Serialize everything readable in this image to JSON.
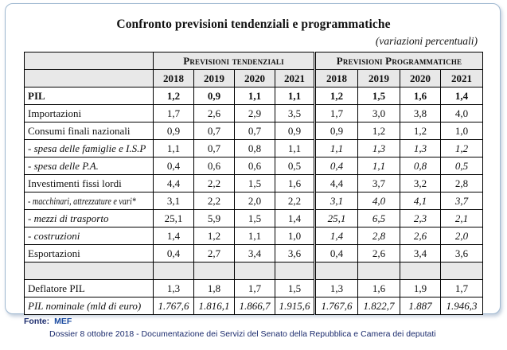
{
  "title": "Confronto previsioni tendenziali e programmatiche",
  "subtitle": "(variazioni percentuali)",
  "groups": {
    "tendenziali": "Previsioni tendenziali",
    "programmatiche": "Previsioni Programmatiche"
  },
  "years": [
    "2018",
    "2019",
    "2020",
    "2021",
    "2018",
    "2019",
    "2020",
    "2021"
  ],
  "rows": [
    {
      "label": "PIL",
      "values": [
        "1,2",
        "0,9",
        "1,1",
        "1,1",
        "1,2",
        "1,5",
        "1,6",
        "1,4"
      ]
    },
    {
      "label": "Importazioni",
      "values": [
        "1,7",
        "2,6",
        "2,9",
        "3,5",
        "1,7",
        "3,0",
        "3,8",
        "4,0"
      ]
    },
    {
      "label": "Consumi finali nazionali",
      "values": [
        "0,9",
        "0,7",
        "0,7",
        "0,9",
        "0,9",
        "1,2",
        "1,2",
        "1,0"
      ]
    },
    {
      "label": "- spesa delle famiglie e I.S.P",
      "values": [
        "1,1",
        "0,7",
        "0,8",
        "1,1",
        "1,1",
        "1,3",
        "1,3",
        "1,2"
      ]
    },
    {
      "label": "- spesa delle P.A.",
      "values": [
        "0,4",
        "0,6",
        "0,6",
        "0,5",
        "0,4",
        "1,1",
        "0,8",
        "0,5"
      ]
    },
    {
      "label": "Investimenti fissi lordi",
      "values": [
        "4,4",
        "2,2",
        "1,5",
        "1,6",
        "4,4",
        "3,7",
        "3,2",
        "2,8"
      ]
    },
    {
      "label": "- macchinari, attrezzature e vari*",
      "values": [
        "3,1",
        "2,2",
        "2,0",
        "2,2",
        "3,1",
        "4,0",
        "4,1",
        "3,7"
      ]
    },
    {
      "label": "- mezzi di trasporto",
      "values": [
        "25,1",
        "5,9",
        "1,5",
        "1,4",
        "25,1",
        "6,5",
        "2,3",
        "2,1"
      ]
    },
    {
      "label": "- costruzioni",
      "values": [
        "1,4",
        "1,2",
        "1,1",
        "1,0",
        "1,4",
        "2,8",
        "2,6",
        "2,0"
      ]
    },
    {
      "label": "Esportazioni",
      "values": [
        "0,4",
        "2,7",
        "3,4",
        "3,6",
        "0,4",
        "2,6",
        "3,4",
        "3,6"
      ]
    },
    {
      "label": "Deflatore PIL",
      "values": [
        "1,3",
        "1,8",
        "1,7",
        "1,5",
        "1,3",
        "1,6",
        "1,9",
        "1,7"
      ]
    },
    {
      "label": "PIL nominale (mld di euro)",
      "values": [
        "1.767,6",
        "1.816,1",
        "1.866,7",
        "1.915,6",
        "1.767,6",
        "1.822,7",
        "1.887",
        "1.946,3"
      ]
    }
  ],
  "footer": {
    "fonte_label": "Fonte:",
    "fonte_value": "MEF",
    "dossier": "Dossier 8 ottobre 2018 - Documentazione dei Servizi del Senato della  Repubblica e Camera dei deputati"
  }
}
